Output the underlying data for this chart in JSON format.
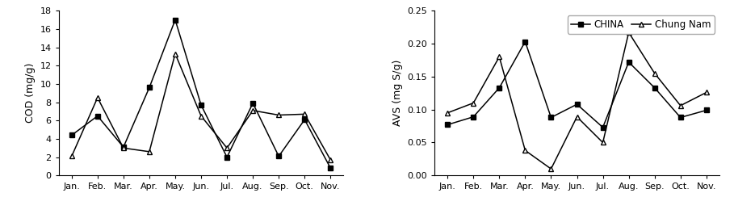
{
  "months": [
    "Jan.",
    "Feb.",
    "Mar.",
    "Apr.",
    "May.",
    "Jun.",
    "Jul.",
    "Aug.",
    "Sep.",
    "Oct.",
    "Nov."
  ],
  "cod_china": [
    4.4,
    6.5,
    3.1,
    9.6,
    17.0,
    7.7,
    2.0,
    7.9,
    2.1,
    6.1,
    0.8
  ],
  "cod_chungnam": [
    2.1,
    8.5,
    3.0,
    2.6,
    13.3,
    6.5,
    3.0,
    7.1,
    6.6,
    6.7,
    1.7
  ],
  "avs_china": [
    0.077,
    0.089,
    0.133,
    0.203,
    0.088,
    0.108,
    0.073,
    0.172,
    0.133,
    0.088,
    0.099
  ],
  "avs_chungnam": [
    0.095,
    0.11,
    0.18,
    0.038,
    0.01,
    0.089,
    0.05,
    0.217,
    0.155,
    0.106,
    0.126
  ],
  "cod_ylabel": "COD (mg/g)",
  "avs_ylabel": "AVS (mg S/g)",
  "cod_ylim": [
    0,
    18
  ],
  "avs_ylim": [
    0.0,
    0.25
  ],
  "cod_yticks": [
    0,
    2,
    4,
    6,
    8,
    10,
    12,
    14,
    16,
    18
  ],
  "avs_yticks": [
    0.0,
    0.05,
    0.1,
    0.15,
    0.2,
    0.25
  ],
  "legend_labels": [
    "CHINA",
    "Chung Nam"
  ],
  "china_color": "#000000",
  "chungnam_color": "#000000",
  "linewidth": 1.1,
  "markersize": 5,
  "fontsize_tick": 8,
  "fontsize_label": 9,
  "fontsize_legend": 8.5
}
